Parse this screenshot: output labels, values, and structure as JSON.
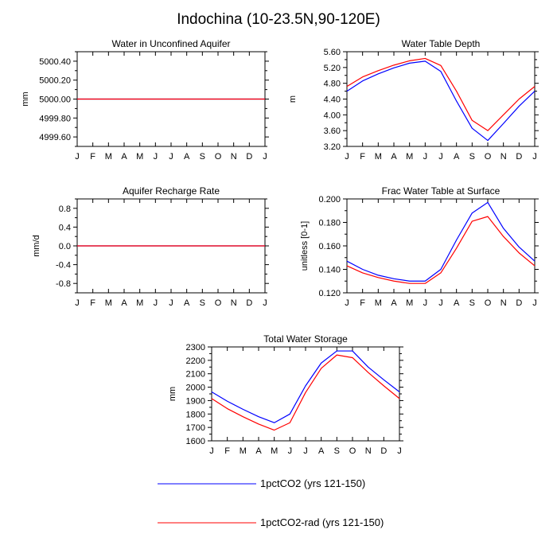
{
  "figure": {
    "title": "Indochina (10-23.5N,90-120E)"
  },
  "legend": {
    "placement": "bottom",
    "items": [
      {
        "label": "1pctCO2 (yrs 121-150)",
        "color": "#0000ff"
      },
      {
        "label": "1pctCO2-rad (yrs 121-150)",
        "color": "#ff0000"
      }
    ]
  },
  "chart_data": [
    {
      "type": "line",
      "title": "Water in Unconfined Aquifer",
      "ylabel": "mm",
      "xlabel": "",
      "x": [
        "J",
        "F",
        "M",
        "A",
        "M",
        "J",
        "J",
        "A",
        "S",
        "O",
        "N",
        "D",
        "J"
      ],
      "ylim": [
        4999.5,
        5000.5
      ],
      "yticks": [
        4999.6,
        4999.8,
        5000.0,
        5000.2,
        5000.4
      ],
      "yticklabels": [
        "4999.60",
        "4999.80",
        "5000.00",
        "5000.20",
        "5000.40"
      ],
      "series": [
        {
          "name": "1pctCO2 (yrs 121-150)",
          "color": "#0000ff",
          "values": [
            5000,
            5000,
            5000,
            5000,
            5000,
            5000,
            5000,
            5000,
            5000,
            5000,
            5000,
            5000,
            5000
          ]
        },
        {
          "name": "1pctCO2-rad (yrs 121-150)",
          "color": "#ff0000",
          "values": [
            5000,
            5000,
            5000,
            5000,
            5000,
            5000,
            5000,
            5000,
            5000,
            5000,
            5000,
            5000,
            5000
          ]
        }
      ]
    },
    {
      "type": "line",
      "title": "Water Table Depth",
      "ylabel": "m",
      "xlabel": "",
      "x": [
        "J",
        "F",
        "M",
        "A",
        "M",
        "J",
        "J",
        "A",
        "S",
        "O",
        "N",
        "D",
        "J"
      ],
      "ylim": [
        3.2,
        5.6
      ],
      "yticks": [
        3.2,
        3.6,
        4.0,
        4.4,
        4.8,
        5.2,
        5.6
      ],
      "yticklabels": [
        "3.20",
        "3.60",
        "4.00",
        "4.40",
        "4.80",
        "5.20",
        "5.60"
      ],
      "series": [
        {
          "name": "1pctCO2 (yrs 121-150)",
          "color": "#0000ff",
          "values": [
            4.6,
            4.86,
            5.04,
            5.19,
            5.31,
            5.36,
            5.1,
            4.35,
            3.66,
            3.35,
            3.78,
            4.22,
            4.6
          ]
        },
        {
          "name": "1pctCO2-rad (yrs 121-150)",
          "color": "#ff0000",
          "values": [
            4.72,
            4.96,
            5.12,
            5.26,
            5.37,
            5.43,
            5.25,
            4.6,
            3.86,
            3.6,
            4.0,
            4.4,
            4.72
          ]
        }
      ]
    },
    {
      "type": "line",
      "title": "Aquifer Recharge Rate",
      "ylabel": "mm/d",
      "xlabel": "",
      "x": [
        "J",
        "F",
        "M",
        "A",
        "M",
        "J",
        "J",
        "A",
        "S",
        "O",
        "N",
        "D",
        "J"
      ],
      "ylim": [
        -1.0,
        1.0
      ],
      "yticks": [
        -0.8,
        -0.4,
        0.0,
        0.4,
        0.8
      ],
      "yticklabels": [
        "-0.8",
        "-0.4",
        "0.0",
        "0.4",
        "0.8"
      ],
      "series": [
        {
          "name": "1pctCO2 (yrs 121-150)",
          "color": "#0000ff",
          "values": [
            0,
            0,
            0,
            0,
            0,
            0,
            0,
            0,
            0,
            0,
            0,
            0,
            0
          ]
        },
        {
          "name": "1pctCO2-rad (yrs 121-150)",
          "color": "#ff0000",
          "values": [
            0,
            0,
            0,
            0,
            0,
            0,
            0,
            0,
            0,
            0,
            0,
            0,
            0
          ]
        }
      ]
    },
    {
      "type": "line",
      "title": "Frac Water Table at Surface",
      "ylabel": "unitless [0-1]",
      "xlabel": "",
      "x": [
        "J",
        "F",
        "M",
        "A",
        "M",
        "J",
        "J",
        "A",
        "S",
        "O",
        "N",
        "D",
        "J"
      ],
      "ylim": [
        0.12,
        0.2
      ],
      "yticks": [
        0.12,
        0.14,
        0.16,
        0.18,
        0.2
      ],
      "yticklabels": [
        "0.120",
        "0.140",
        "0.160",
        "0.180",
        "0.200"
      ],
      "series": [
        {
          "name": "1pctCO2 (yrs 121-150)",
          "color": "#0000ff",
          "values": [
            0.147,
            0.14,
            0.135,
            0.132,
            0.13,
            0.13,
            0.14,
            0.165,
            0.188,
            0.197,
            0.175,
            0.159,
            0.147
          ]
        },
        {
          "name": "1pctCO2-rad (yrs 121-150)",
          "color": "#ff0000",
          "values": [
            0.143,
            0.137,
            0.133,
            0.13,
            0.128,
            0.128,
            0.137,
            0.158,
            0.181,
            0.185,
            0.168,
            0.154,
            0.143
          ]
        }
      ]
    },
    {
      "type": "line",
      "title": "Total Water Storage",
      "ylabel": "mm",
      "xlabel": "",
      "x": [
        "J",
        "F",
        "M",
        "A",
        "M",
        "J",
        "J",
        "A",
        "S",
        "O",
        "N",
        "D",
        "J"
      ],
      "ylim": [
        1600,
        2300
      ],
      "yticks": [
        1600,
        1700,
        1800,
        1900,
        2000,
        2100,
        2200,
        2300
      ],
      "yticklabels": [
        "1600",
        "1700",
        "1800",
        "1900",
        "2000",
        "2100",
        "2200",
        "2300"
      ],
      "series": [
        {
          "name": "1pctCO2 (yrs 121-150)",
          "color": "#0000ff",
          "values": [
            1965,
            1895,
            1835,
            1780,
            1735,
            1800,
            2010,
            2180,
            2270,
            2270,
            2150,
            2055,
            1965
          ]
        },
        {
          "name": "1pctCO2-rad (yrs 121-150)",
          "color": "#ff0000",
          "values": [
            1915,
            1840,
            1780,
            1725,
            1680,
            1735,
            1960,
            2140,
            2240,
            2220,
            2110,
            2010,
            1915
          ]
        }
      ]
    }
  ]
}
